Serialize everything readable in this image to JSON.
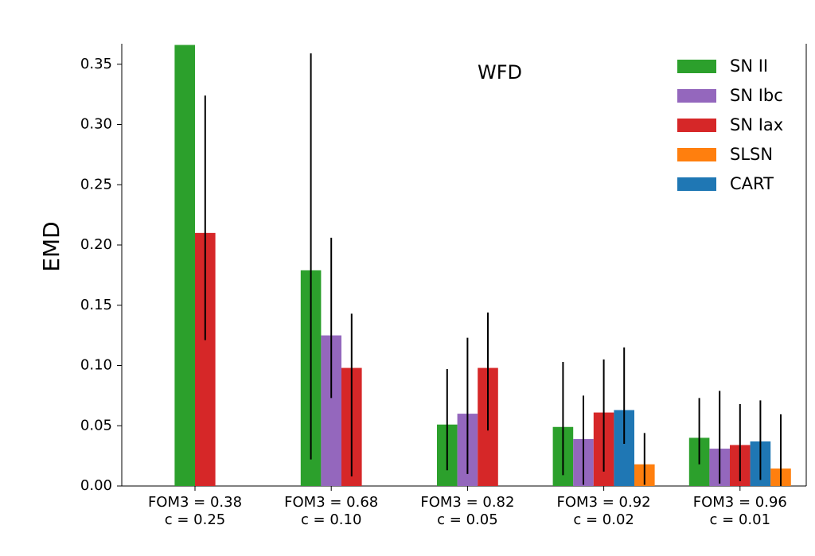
{
  "chart_data": {
    "type": "bar",
    "title": "WFD",
    "y_label": "EMD",
    "categories": [
      [
        "FOM3 = 0.38",
        "c = 0.25"
      ],
      [
        "FOM3 = 0.68",
        "c = 0.10"
      ],
      [
        "FOM3 = 0.82",
        "c = 0.05"
      ],
      [
        "FOM3 = 0.92",
        "c = 0.02"
      ],
      [
        "FOM3 = 0.96",
        "c = 0.01"
      ]
    ],
    "series": [
      {
        "name": "SN II",
        "color": "#2ca02c",
        "values": [
          0.366,
          0.179,
          0.051,
          0.049,
          0.04
        ],
        "yerr": [
          null,
          [
            0.157,
            0.18
          ],
          [
            0.038,
            0.046
          ],
          [
            0.04,
            0.054
          ],
          [
            0.022,
            0.033
          ]
        ]
      },
      {
        "name": "SN Ibc",
        "color": "#9467bd",
        "values": [
          null,
          0.125,
          0.06,
          0.039,
          0.031
        ],
        "yerr": [
          null,
          [
            0.052,
            0.081
          ],
          [
            0.05,
            0.063
          ],
          [
            0.038,
            0.036
          ],
          [
            0.029,
            0.048
          ]
        ]
      },
      {
        "name": "SN Iax",
        "color": "#d62728",
        "values": [
          0.21,
          0.098,
          0.098,
          0.061,
          0.034
        ],
        "yerr": [
          [
            0.089,
            0.114
          ],
          [
            0.09,
            0.045
          ],
          [
            0.052,
            0.046
          ],
          [
            0.049,
            0.044
          ],
          [
            0.03,
            0.034
          ]
        ]
      },
      {
        "name": "SLSN",
        "color": "#ff7f0e",
        "values": [
          null,
          null,
          null,
          0.018,
          0.0145
        ],
        "yerr": [
          null,
          null,
          null,
          [
            0.017,
            0.026
          ],
          [
            0.0145,
            0.045
          ]
        ]
      },
      {
        "name": "CART",
        "color": "#1f77b4",
        "values": [
          null,
          null,
          null,
          0.063,
          0.037
        ],
        "yerr": [
          null,
          null,
          null,
          [
            0.028,
            0.052
          ],
          [
            0.032,
            0.034
          ]
        ]
      }
    ],
    "ylim": [
      0,
      0.367
    ],
    "yticks": [
      {
        "value": 0,
        "label": "0.00"
      },
      0.05,
      {
        "value": 0.1,
        "label": "0.10"
      },
      0.15,
      {
        "value": 0.2,
        "label": "0.20"
      },
      0.25,
      {
        "value": 0.3,
        "label": "0.30"
      },
      0.35
    ],
    "legend": "upper right"
  }
}
